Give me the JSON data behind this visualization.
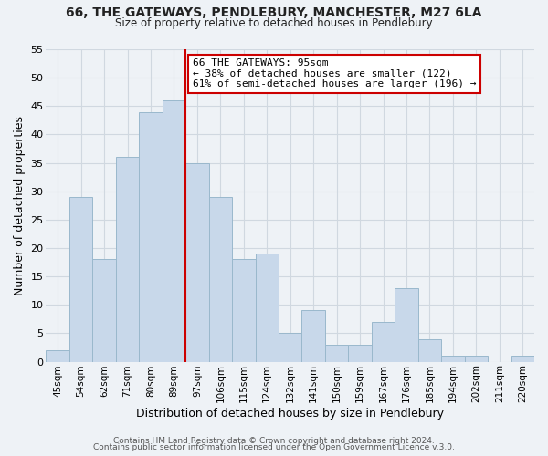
{
  "title1": "66, THE GATEWAYS, PENDLEBURY, MANCHESTER, M27 6LA",
  "title2": "Size of property relative to detached houses in Pendlebury",
  "xlabel": "Distribution of detached houses by size in Pendlebury",
  "ylabel": "Number of detached properties",
  "bar_color": "#c8d8ea",
  "bar_edge_color": "#9ab8cc",
  "categories": [
    "45sqm",
    "54sqm",
    "62sqm",
    "71sqm",
    "80sqm",
    "89sqm",
    "97sqm",
    "106sqm",
    "115sqm",
    "124sqm",
    "132sqm",
    "141sqm",
    "150sqm",
    "159sqm",
    "167sqm",
    "176sqm",
    "185sqm",
    "194sqm",
    "202sqm",
    "211sqm",
    "220sqm"
  ],
  "values": [
    2,
    29,
    18,
    36,
    44,
    46,
    35,
    29,
    18,
    19,
    5,
    9,
    3,
    3,
    7,
    13,
    4,
    1,
    1,
    0,
    1
  ],
  "ylim": [
    0,
    55
  ],
  "yticks": [
    0,
    5,
    10,
    15,
    20,
    25,
    30,
    35,
    40,
    45,
    50,
    55
  ],
  "vline_color": "#cc0000",
  "vline_index": 6,
  "annotation_title": "66 THE GATEWAYS: 95sqm",
  "annotation_line1": "← 38% of detached houses are smaller (122)",
  "annotation_line2": "61% of semi-detached houses are larger (196) →",
  "annotation_box_color": "#ffffff",
  "annotation_box_edge": "#cc0000",
  "footer1": "Contains HM Land Registry data © Crown copyright and database right 2024.",
  "footer2": "Contains public sector information licensed under the Open Government Licence v.3.0.",
  "grid_color": "#d0d8e0",
  "background_color": "#eef2f6"
}
